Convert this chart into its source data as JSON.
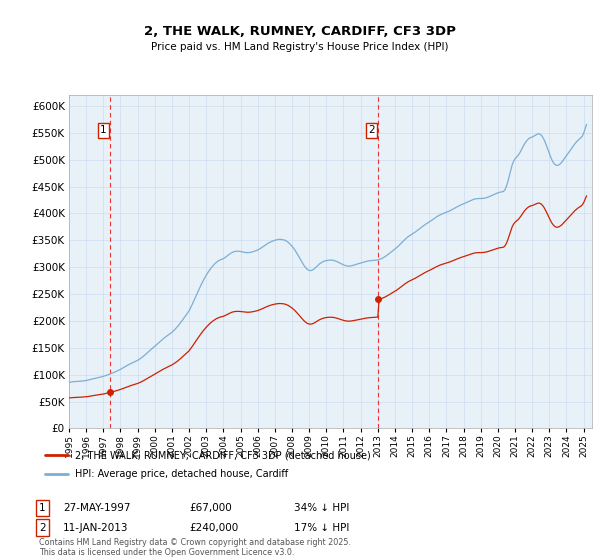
{
  "title": "2, THE WALK, RUMNEY, CARDIFF, CF3 3DP",
  "subtitle": "Price paid vs. HM Land Registry's House Price Index (HPI)",
  "ylim": [
    0,
    620000
  ],
  "yticks": [
    0,
    50000,
    100000,
    150000,
    200000,
    250000,
    300000,
    350000,
    400000,
    450000,
    500000,
    550000,
    600000
  ],
  "xlim_start": 1995.0,
  "xlim_end": 2025.5,
  "sale1_year": 1997.41,
  "sale1_price": 67000,
  "sale1_label": "1",
  "sale1_date": "27-MAY-1997",
  "sale1_pct": "34% ↓ HPI",
  "sale2_year": 2013.03,
  "sale2_price": 240000,
  "sale2_label": "2",
  "sale2_date": "11-JAN-2013",
  "sale2_pct": "17% ↓ HPI",
  "hpi_color": "#7bafd4",
  "sale_color": "#cc2200",
  "vline_color": "#ee3333",
  "grid_color": "#ccddee",
  "bg_color": "#e8f0f8",
  "legend_label_sale": "2, THE WALK, RUMNEY, CARDIFF, CF3 3DP (detached house)",
  "legend_label_hpi": "HPI: Average price, detached house, Cardiff",
  "footer": "Contains HM Land Registry data © Crown copyright and database right 2025.\nThis data is licensed under the Open Government Licence v3.0.",
  "hpi_index": [
    [
      1995.0,
      57.0
    ],
    [
      1995.083,
      57.3
    ],
    [
      1995.167,
      57.6
    ],
    [
      1995.25,
      57.8
    ],
    [
      1995.333,
      57.9
    ],
    [
      1995.417,
      58.0
    ],
    [
      1995.5,
      58.1
    ],
    [
      1995.583,
      58.3
    ],
    [
      1995.667,
      58.5
    ],
    [
      1995.75,
      58.6
    ],
    [
      1995.833,
      58.8
    ],
    [
      1995.917,
      58.9
    ],
    [
      1996.0,
      59.2
    ],
    [
      1996.083,
      59.6
    ],
    [
      1996.167,
      60.1
    ],
    [
      1996.25,
      60.5
    ],
    [
      1996.333,
      61.0
    ],
    [
      1996.417,
      61.4
    ],
    [
      1996.5,
      61.9
    ],
    [
      1996.583,
      62.3
    ],
    [
      1996.667,
      62.7
    ],
    [
      1996.75,
      63.1
    ],
    [
      1996.833,
      63.5
    ],
    [
      1996.917,
      63.9
    ],
    [
      1997.0,
      64.4
    ],
    [
      1997.083,
      65.0
    ],
    [
      1997.167,
      65.6
    ],
    [
      1997.25,
      66.3
    ],
    [
      1997.333,
      66.9
    ],
    [
      1997.417,
      67.5
    ],
    [
      1997.5,
      68.2
    ],
    [
      1997.583,
      68.9
    ],
    [
      1997.667,
      69.7
    ],
    [
      1997.75,
      70.5
    ],
    [
      1997.833,
      71.3
    ],
    [
      1997.917,
      72.1
    ],
    [
      1998.0,
      73.0
    ],
    [
      1998.083,
      74.0
    ],
    [
      1998.167,
      75.1
    ],
    [
      1998.25,
      76.2
    ],
    [
      1998.333,
      77.2
    ],
    [
      1998.417,
      78.2
    ],
    [
      1998.5,
      79.1
    ],
    [
      1998.583,
      80.0
    ],
    [
      1998.667,
      80.9
    ],
    [
      1998.75,
      81.7
    ],
    [
      1998.833,
      82.5
    ],
    [
      1998.917,
      83.3
    ],
    [
      1999.0,
      84.2
    ],
    [
      1999.083,
      85.3
    ],
    [
      1999.167,
      86.5
    ],
    [
      1999.25,
      87.8
    ],
    [
      1999.333,
      89.2
    ],
    [
      1999.417,
      90.7
    ],
    [
      1999.5,
      92.3
    ],
    [
      1999.583,
      93.9
    ],
    [
      1999.667,
      95.5
    ],
    [
      1999.75,
      97.1
    ],
    [
      1999.833,
      98.6
    ],
    [
      1999.917,
      100.1
    ],
    [
      2000.0,
      101.6
    ],
    [
      2000.083,
      103.2
    ],
    [
      2000.167,
      104.8
    ],
    [
      2000.25,
      106.4
    ],
    [
      2000.333,
      108.0
    ],
    [
      2000.417,
      109.5
    ],
    [
      2000.5,
      111.0
    ],
    [
      2000.583,
      112.4
    ],
    [
      2000.667,
      113.8
    ],
    [
      2000.75,
      115.1
    ],
    [
      2000.833,
      116.4
    ],
    [
      2000.917,
      117.6
    ],
    [
      2001.0,
      118.9
    ],
    [
      2001.083,
      120.5
    ],
    [
      2001.167,
      122.3
    ],
    [
      2001.25,
      124.2
    ],
    [
      2001.333,
      126.2
    ],
    [
      2001.417,
      128.4
    ],
    [
      2001.5,
      130.7
    ],
    [
      2001.583,
      133.1
    ],
    [
      2001.667,
      135.6
    ],
    [
      2001.75,
      138.0
    ],
    [
      2001.833,
      140.5
    ],
    [
      2001.917,
      142.9
    ],
    [
      2002.0,
      145.5
    ],
    [
      2002.083,
      149.0
    ],
    [
      2002.167,
      152.7
    ],
    [
      2002.25,
      156.5
    ],
    [
      2002.333,
      160.5
    ],
    [
      2002.417,
      164.5
    ],
    [
      2002.5,
      168.5
    ],
    [
      2002.583,
      172.4
    ],
    [
      2002.667,
      176.2
    ],
    [
      2002.75,
      179.8
    ],
    [
      2002.833,
      183.2
    ],
    [
      2002.917,
      186.4
    ],
    [
      2003.0,
      189.5
    ],
    [
      2003.083,
      192.4
    ],
    [
      2003.167,
      195.1
    ],
    [
      2003.25,
      197.6
    ],
    [
      2003.333,
      199.8
    ],
    [
      2003.417,
      201.9
    ],
    [
      2003.5,
      203.7
    ],
    [
      2003.583,
      205.3
    ],
    [
      2003.667,
      206.7
    ],
    [
      2003.75,
      207.8
    ],
    [
      2003.833,
      208.7
    ],
    [
      2003.917,
      209.4
    ],
    [
      2004.0,
      210.0
    ],
    [
      2004.083,
      211.2
    ],
    [
      2004.167,
      212.5
    ],
    [
      2004.25,
      213.9
    ],
    [
      2004.333,
      215.3
    ],
    [
      2004.417,
      216.5
    ],
    [
      2004.5,
      217.6
    ],
    [
      2004.583,
      218.4
    ],
    [
      2004.667,
      218.9
    ],
    [
      2004.75,
      219.2
    ],
    [
      2004.833,
      219.3
    ],
    [
      2004.917,
      219.2
    ],
    [
      2005.0,
      218.9
    ],
    [
      2005.083,
      218.5
    ],
    [
      2005.167,
      218.1
    ],
    [
      2005.25,
      217.8
    ],
    [
      2005.333,
      217.6
    ],
    [
      2005.417,
      217.5
    ],
    [
      2005.5,
      217.6
    ],
    [
      2005.583,
      217.9
    ],
    [
      2005.667,
      218.3
    ],
    [
      2005.75,
      218.8
    ],
    [
      2005.833,
      219.4
    ],
    [
      2005.917,
      220.0
    ],
    [
      2006.0,
      220.7
    ],
    [
      2006.083,
      221.7
    ],
    [
      2006.167,
      222.8
    ],
    [
      2006.25,
      224.0
    ],
    [
      2006.333,
      225.2
    ],
    [
      2006.417,
      226.5
    ],
    [
      2006.5,
      227.7
    ],
    [
      2006.583,
      228.8
    ],
    [
      2006.667,
      229.8
    ],
    [
      2006.75,
      230.7
    ],
    [
      2006.833,
      231.5
    ],
    [
      2006.917,
      232.2
    ],
    [
      2007.0,
      232.8
    ],
    [
      2007.083,
      233.3
    ],
    [
      2007.167,
      233.7
    ],
    [
      2007.25,
      233.9
    ],
    [
      2007.333,
      233.9
    ],
    [
      2007.417,
      233.7
    ],
    [
      2007.5,
      233.4
    ],
    [
      2007.583,
      232.8
    ],
    [
      2007.667,
      231.9
    ],
    [
      2007.75,
      230.7
    ],
    [
      2007.833,
      229.2
    ],
    [
      2007.917,
      227.4
    ],
    [
      2008.0,
      225.5
    ],
    [
      2008.083,
      223.3
    ],
    [
      2008.167,
      220.8
    ],
    [
      2008.25,
      218.0
    ],
    [
      2008.333,
      215.0
    ],
    [
      2008.417,
      211.9
    ],
    [
      2008.5,
      208.7
    ],
    [
      2008.583,
      205.6
    ],
    [
      2008.667,
      202.7
    ],
    [
      2008.75,
      200.1
    ],
    [
      2008.833,
      198.0
    ],
    [
      2008.917,
      196.4
    ],
    [
      2009.0,
      195.5
    ],
    [
      2009.083,
      195.3
    ],
    [
      2009.167,
      195.7
    ],
    [
      2009.25,
      196.7
    ],
    [
      2009.333,
      198.2
    ],
    [
      2009.417,
      199.9
    ],
    [
      2009.5,
      201.6
    ],
    [
      2009.583,
      203.2
    ],
    [
      2009.667,
      204.5
    ],
    [
      2009.75,
      205.6
    ],
    [
      2009.833,
      206.5
    ],
    [
      2009.917,
      207.2
    ],
    [
      2010.0,
      207.7
    ],
    [
      2010.083,
      208.0
    ],
    [
      2010.167,
      208.2
    ],
    [
      2010.25,
      208.3
    ],
    [
      2010.333,
      208.2
    ],
    [
      2010.417,
      207.9
    ],
    [
      2010.5,
      207.4
    ],
    [
      2010.583,
      206.7
    ],
    [
      2010.667,
      205.9
    ],
    [
      2010.75,
      205.0
    ],
    [
      2010.833,
      204.1
    ],
    [
      2010.917,
      203.2
    ],
    [
      2011.0,
      202.4
    ],
    [
      2011.083,
      201.7
    ],
    [
      2011.167,
      201.2
    ],
    [
      2011.25,
      200.9
    ],
    [
      2011.333,
      200.8
    ],
    [
      2011.417,
      201.0
    ],
    [
      2011.5,
      201.4
    ],
    [
      2011.583,
      201.9
    ],
    [
      2011.667,
      202.5
    ],
    [
      2011.75,
      203.1
    ],
    [
      2011.833,
      203.6
    ],
    [
      2011.917,
      204.1
    ],
    [
      2012.0,
      204.6
    ],
    [
      2012.083,
      205.1
    ],
    [
      2012.167,
      205.6
    ],
    [
      2012.25,
      206.2
    ],
    [
      2012.333,
      206.7
    ],
    [
      2012.417,
      207.1
    ],
    [
      2012.5,
      207.4
    ],
    [
      2012.583,
      207.6
    ],
    [
      2012.667,
      207.8
    ],
    [
      2012.75,
      207.9
    ],
    [
      2012.833,
      208.0
    ],
    [
      2012.917,
      208.2
    ],
    [
      2013.0,
      208.5
    ],
    [
      2013.083,
      209.0
    ],
    [
      2013.167,
      209.6
    ],
    [
      2013.25,
      210.4
    ],
    [
      2013.333,
      211.4
    ],
    [
      2013.417,
      212.5
    ],
    [
      2013.5,
      213.7
    ],
    [
      2013.583,
      215.0
    ],
    [
      2013.667,
      216.3
    ],
    [
      2013.75,
      217.7
    ],
    [
      2013.833,
      219.1
    ],
    [
      2013.917,
      220.5
    ],
    [
      2014.0,
      221.9
    ],
    [
      2014.083,
      223.4
    ],
    [
      2014.167,
      225.0
    ],
    [
      2014.25,
      226.7
    ],
    [
      2014.333,
      228.5
    ],
    [
      2014.417,
      230.3
    ],
    [
      2014.5,
      232.1
    ],
    [
      2014.583,
      233.8
    ],
    [
      2014.667,
      235.4
    ],
    [
      2014.75,
      236.9
    ],
    [
      2014.833,
      238.2
    ],
    [
      2014.917,
      239.3
    ],
    [
      2015.0,
      240.4
    ],
    [
      2015.083,
      241.5
    ],
    [
      2015.167,
      242.7
    ],
    [
      2015.25,
      244.0
    ],
    [
      2015.333,
      245.3
    ],
    [
      2015.417,
      246.7
    ],
    [
      2015.5,
      248.1
    ],
    [
      2015.583,
      249.5
    ],
    [
      2015.667,
      250.8
    ],
    [
      2015.75,
      252.1
    ],
    [
      2015.833,
      253.3
    ],
    [
      2015.917,
      254.4
    ],
    [
      2016.0,
      255.5
    ],
    [
      2016.083,
      256.6
    ],
    [
      2016.167,
      257.8
    ],
    [
      2016.25,
      259.1
    ],
    [
      2016.333,
      260.4
    ],
    [
      2016.417,
      261.6
    ],
    [
      2016.5,
      262.7
    ],
    [
      2016.583,
      263.7
    ],
    [
      2016.667,
      264.6
    ],
    [
      2016.75,
      265.4
    ],
    [
      2016.833,
      266.1
    ],
    [
      2016.917,
      266.8
    ],
    [
      2017.0,
      267.4
    ],
    [
      2017.083,
      268.1
    ],
    [
      2017.167,
      268.9
    ],
    [
      2017.25,
      269.8
    ],
    [
      2017.333,
      270.8
    ],
    [
      2017.417,
      271.8
    ],
    [
      2017.5,
      272.8
    ],
    [
      2017.583,
      273.8
    ],
    [
      2017.667,
      274.7
    ],
    [
      2017.75,
      275.6
    ],
    [
      2017.833,
      276.4
    ],
    [
      2017.917,
      277.2
    ],
    [
      2018.0,
      277.9
    ],
    [
      2018.083,
      278.7
    ],
    [
      2018.167,
      279.5
    ],
    [
      2018.25,
      280.4
    ],
    [
      2018.333,
      281.3
    ],
    [
      2018.417,
      282.1
    ],
    [
      2018.5,
      282.8
    ],
    [
      2018.583,
      283.4
    ],
    [
      2018.667,
      283.9
    ],
    [
      2018.75,
      284.2
    ],
    [
      2018.833,
      284.4
    ],
    [
      2018.917,
      284.5
    ],
    [
      2019.0,
      284.5
    ],
    [
      2019.083,
      284.5
    ],
    [
      2019.167,
      284.7
    ],
    [
      2019.25,
      285.0
    ],
    [
      2019.333,
      285.5
    ],
    [
      2019.417,
      286.1
    ],
    [
      2019.5,
      286.8
    ],
    [
      2019.583,
      287.6
    ],
    [
      2019.667,
      288.4
    ],
    [
      2019.75,
      289.2
    ],
    [
      2019.833,
      290.0
    ],
    [
      2019.917,
      290.8
    ],
    [
      2020.0,
      291.5
    ],
    [
      2020.083,
      292.1
    ],
    [
      2020.167,
      292.5
    ],
    [
      2020.25,
      292.7
    ],
    [
      2020.333,
      293.3
    ],
    [
      2020.417,
      295.4
    ],
    [
      2020.5,
      299.5
    ],
    [
      2020.583,
      305.4
    ],
    [
      2020.667,
      312.5
    ],
    [
      2020.75,
      319.8
    ],
    [
      2020.833,
      326.0
    ],
    [
      2020.917,
      330.5
    ],
    [
      2021.0,
      333.5
    ],
    [
      2021.083,
      335.5
    ],
    [
      2021.167,
      337.5
    ],
    [
      2021.25,
      340.0
    ],
    [
      2021.333,
      343.0
    ],
    [
      2021.417,
      346.5
    ],
    [
      2021.5,
      350.0
    ],
    [
      2021.583,
      353.0
    ],
    [
      2021.667,
      355.5
    ],
    [
      2021.75,
      357.5
    ],
    [
      2021.833,
      359.0
    ],
    [
      2021.917,
      360.0
    ],
    [
      2022.0,
      360.5
    ],
    [
      2022.083,
      361.5
    ],
    [
      2022.167,
      362.5
    ],
    [
      2022.25,
      363.5
    ],
    [
      2022.333,
      364.5
    ],
    [
      2022.417,
      364.5
    ],
    [
      2022.5,
      363.5
    ],
    [
      2022.583,
      361.5
    ],
    [
      2022.667,
      358.5
    ],
    [
      2022.75,
      354.5
    ],
    [
      2022.833,
      350.0
    ],
    [
      2022.917,
      345.0
    ],
    [
      2023.0,
      340.0
    ],
    [
      2023.083,
      335.5
    ],
    [
      2023.167,
      331.5
    ],
    [
      2023.25,
      328.5
    ],
    [
      2023.333,
      326.5
    ],
    [
      2023.417,
      325.5
    ],
    [
      2023.5,
      325.5
    ],
    [
      2023.583,
      326.5
    ],
    [
      2023.667,
      328.0
    ],
    [
      2023.75,
      330.0
    ],
    [
      2023.833,
      332.5
    ],
    [
      2023.917,
      335.0
    ],
    [
      2024.0,
      337.5
    ],
    [
      2024.083,
      340.0
    ],
    [
      2024.167,
      342.5
    ],
    [
      2024.25,
      345.0
    ],
    [
      2024.333,
      347.5
    ],
    [
      2024.417,
      350.0
    ],
    [
      2024.5,
      352.5
    ],
    [
      2024.583,
      354.5
    ],
    [
      2024.667,
      356.5
    ],
    [
      2024.75,
      358.0
    ],
    [
      2024.833,
      359.5
    ],
    [
      2024.917,
      361.5
    ],
    [
      2025.0,
      365.0
    ],
    [
      2025.083,
      370.5
    ],
    [
      2025.167,
      376.0
    ]
  ]
}
